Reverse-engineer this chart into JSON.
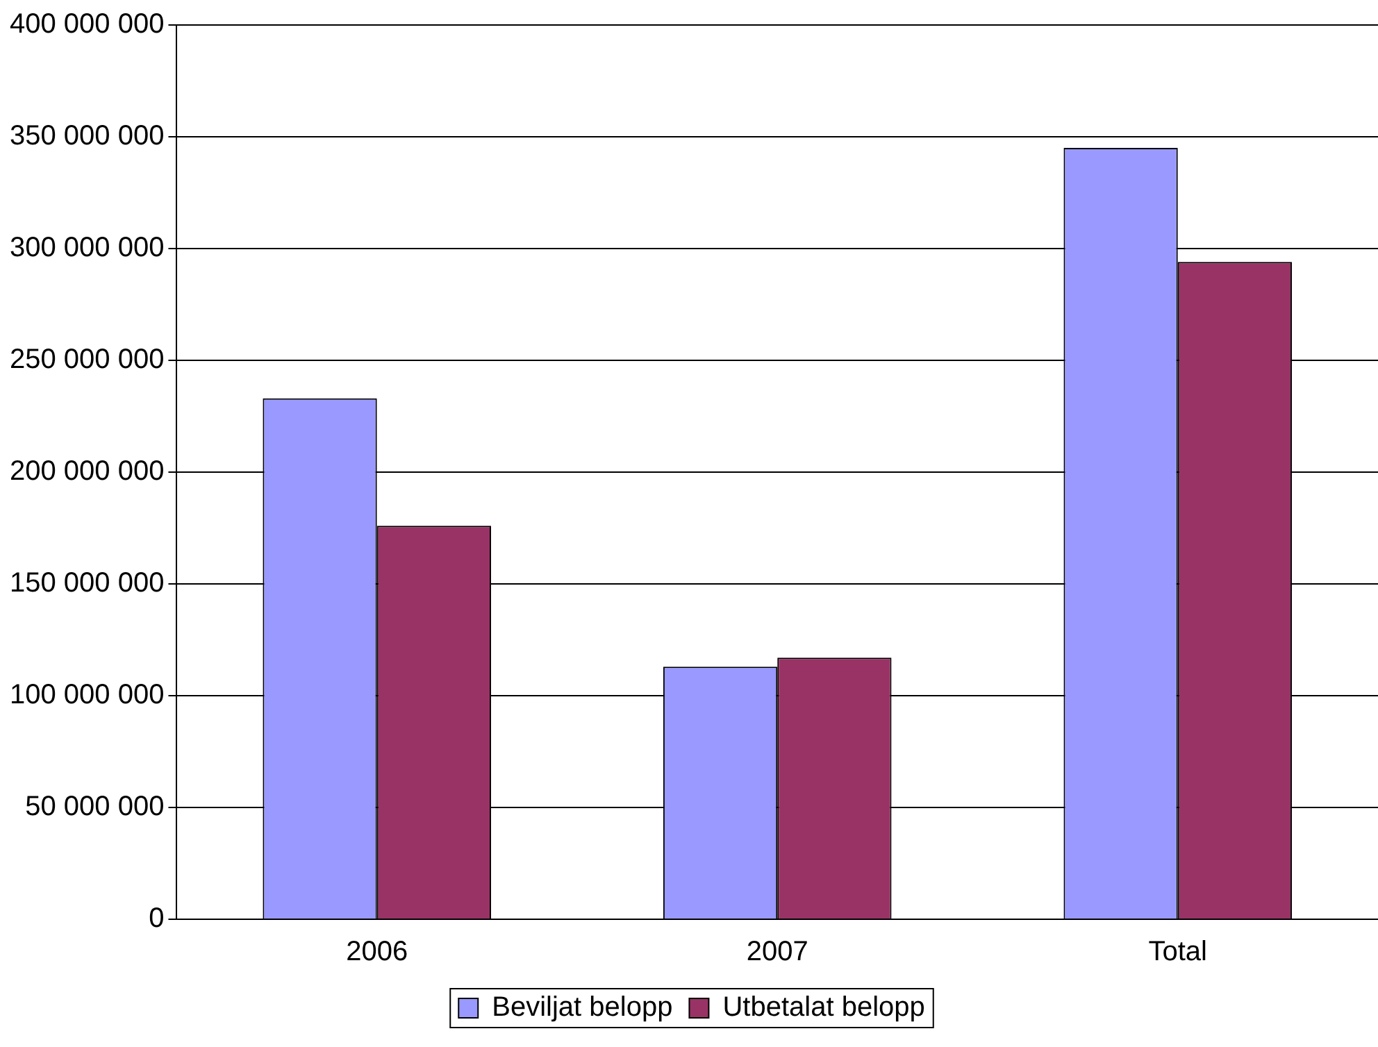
{
  "chart_data": {
    "type": "bar",
    "categories": [
      "2006",
      "2007",
      "Total"
    ],
    "series": [
      {
        "name": "Beviljat belopp",
        "color": "#9999ff",
        "values": [
          233000000,
          113000000,
          345000000
        ]
      },
      {
        "name": "Utbetalat belopp",
        "color": "#993366",
        "values": [
          176000000,
          117000000,
          294000000
        ]
      }
    ],
    "ylim": [
      0,
      400000000
    ],
    "yticks": [
      {
        "value": 0,
        "label": "0"
      },
      {
        "value": 50000000,
        "label": "50 000 000"
      },
      {
        "value": 100000000,
        "label": "100 000 000"
      },
      {
        "value": 150000000,
        "label": "150 000 000"
      },
      {
        "value": 200000000,
        "label": "200 000 000"
      },
      {
        "value": 250000000,
        "label": "250 000 000"
      },
      {
        "value": 300000000,
        "label": "300 000 000"
      },
      {
        "value": 350000000,
        "label": "350 000 000"
      },
      {
        "value": 400000000,
        "label": "400 000 000"
      }
    ],
    "grid": "y",
    "legend": "bottom"
  }
}
